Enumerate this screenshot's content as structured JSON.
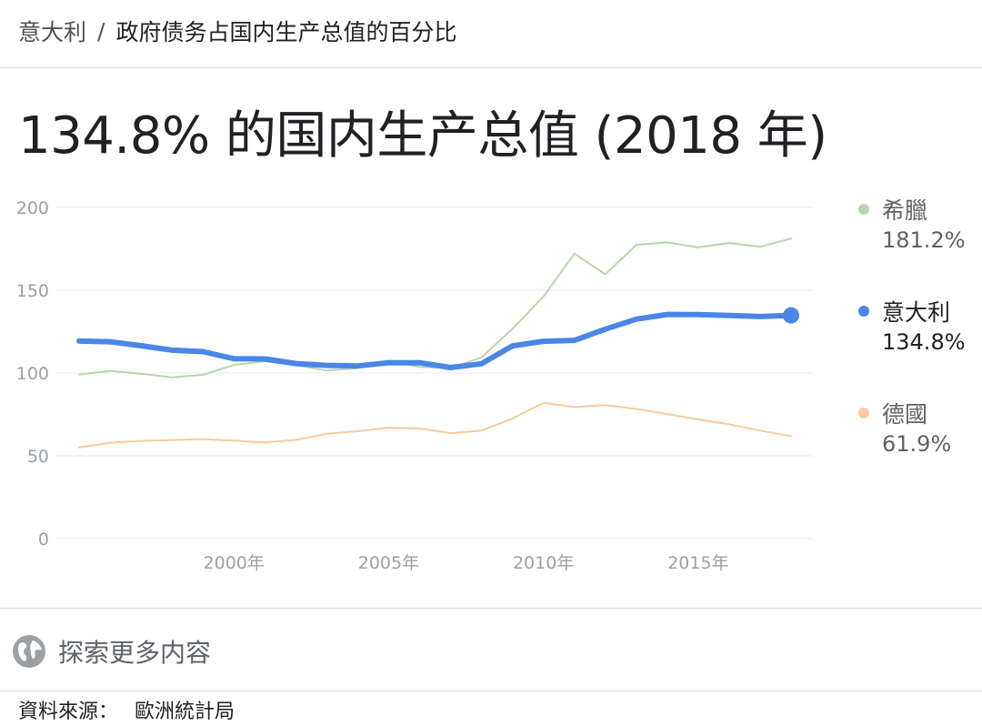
{
  "breadcrumb": {
    "parent": "意大利",
    "separator": "/",
    "current": "政府债务占国内生产总值的百分比"
  },
  "headline": "134.8% 的国内生产总值 (2018 年)",
  "explore": {
    "label": "探索更多内容",
    "icon": "globe-icon"
  },
  "source": {
    "label": "資料來源：",
    "value": "歐洲統計局"
  },
  "colors": {
    "greece": "#b7d7a8",
    "italy": "#4a86e8",
    "germany": "#f9cb9c",
    "grid": "#e8eaed",
    "axis_text": "#9aa0a6"
  },
  "chart_data": {
    "type": "line",
    "xlabel": "",
    "ylabel": "",
    "xlim": [
      1995,
      2018
    ],
    "ylim": [
      0,
      200
    ],
    "y_ticks": [
      0,
      50,
      100,
      150,
      200
    ],
    "x_ticks": [
      {
        "value": 2000,
        "label": "2000年"
      },
      {
        "value": 2005,
        "label": "2005年"
      },
      {
        "value": 2010,
        "label": "2010年"
      },
      {
        "value": 2015,
        "label": "2015年"
      }
    ],
    "grid": true,
    "legend_position": "right",
    "x": [
      1995,
      1996,
      1997,
      1998,
      1999,
      2000,
      2001,
      2002,
      2003,
      2004,
      2005,
      2006,
      2007,
      2008,
      2009,
      2010,
      2011,
      2012,
      2013,
      2014,
      2015,
      2016,
      2017,
      2018
    ],
    "series": [
      {
        "key": "greece",
        "name": "希臘",
        "legend_value": "181.2%",
        "values": [
          99.0,
          101.3,
          99.5,
          97.4,
          98.9,
          104.9,
          107.1,
          104.9,
          101.5,
          102.9,
          107.4,
          103.6,
          103.1,
          109.4,
          126.7,
          146.2,
          172.1,
          159.6,
          177.4,
          178.9,
          175.9,
          178.5,
          176.2,
          181.2
        ]
      },
      {
        "key": "italy",
        "name": "意大利",
        "legend_value": "134.8%",
        "highlight": true,
        "values": [
          119.3,
          118.9,
          116.5,
          113.8,
          112.9,
          108.6,
          108.5,
          105.7,
          104.6,
          104.3,
          106.2,
          106.2,
          103.3,
          105.6,
          116.4,
          119.2,
          119.7,
          126.5,
          132.5,
          135.4,
          135.3,
          134.8,
          134.1,
          134.8
        ]
      },
      {
        "key": "germany",
        "name": "德國",
        "legend_value": "61.9%",
        "values": [
          55.0,
          57.9,
          59.0,
          59.5,
          60.1,
          59.1,
          58.0,
          59.6,
          63.3,
          64.9,
          67.0,
          66.5,
          63.7,
          65.2,
          72.6,
          82.0,
          79.4,
          80.6,
          78.3,
          75.3,
          71.9,
          69.0,
          65.2,
          61.9
        ]
      }
    ]
  }
}
